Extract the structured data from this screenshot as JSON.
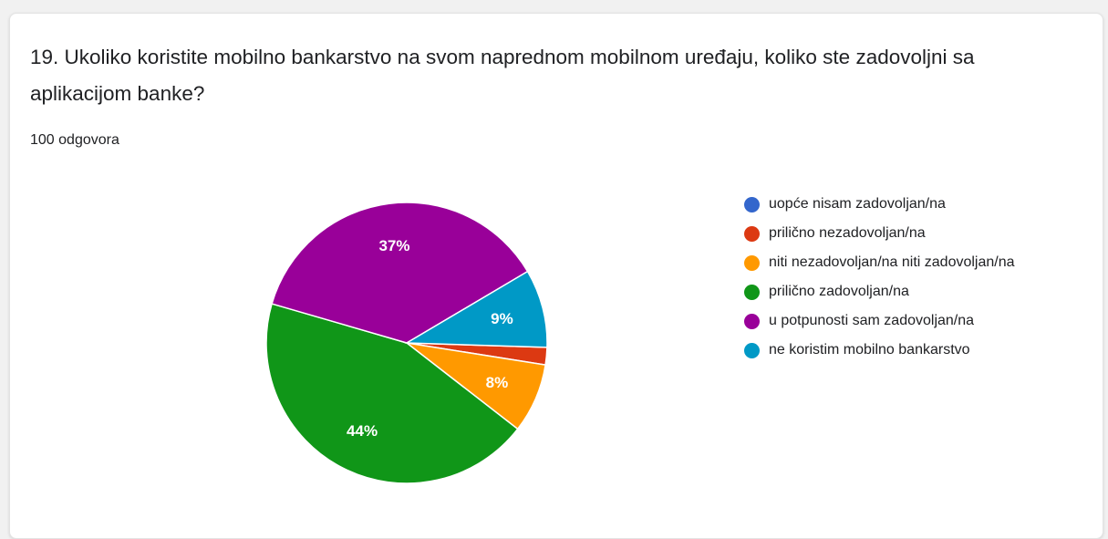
{
  "question": {
    "title": "19. Ukoliko koristite mobilno bankarstvo na svom naprednom mobilnom uređaju, koliko ste zadovoljni sa aplikacijom banke?",
    "responses": "100 odgovora"
  },
  "chart_data": {
    "type": "pie",
    "series": [
      {
        "name": "uopće nisam zadovoljan/na",
        "value": 0,
        "label": "",
        "color": "#3366cc"
      },
      {
        "name": "prilično nezadovoljan/na",
        "value": 2,
        "label": "",
        "color": "#dc3912"
      },
      {
        "name": "niti nezadovoljan/na niti zadovoljan/na",
        "value": 8,
        "label": "8%",
        "color": "#ff9900"
      },
      {
        "name": "prilično zadovoljan/na",
        "value": 44,
        "label": "44%",
        "color": "#109618"
      },
      {
        "name": "u potpunosti sam zadovoljan/na",
        "value": 37,
        "label": "37%",
        "color": "#990099"
      },
      {
        "name": "ne koristim mobilno bankarstvo",
        "value": 9,
        "label": "9%",
        "color": "#0099c6"
      }
    ],
    "legend_position": "right"
  }
}
